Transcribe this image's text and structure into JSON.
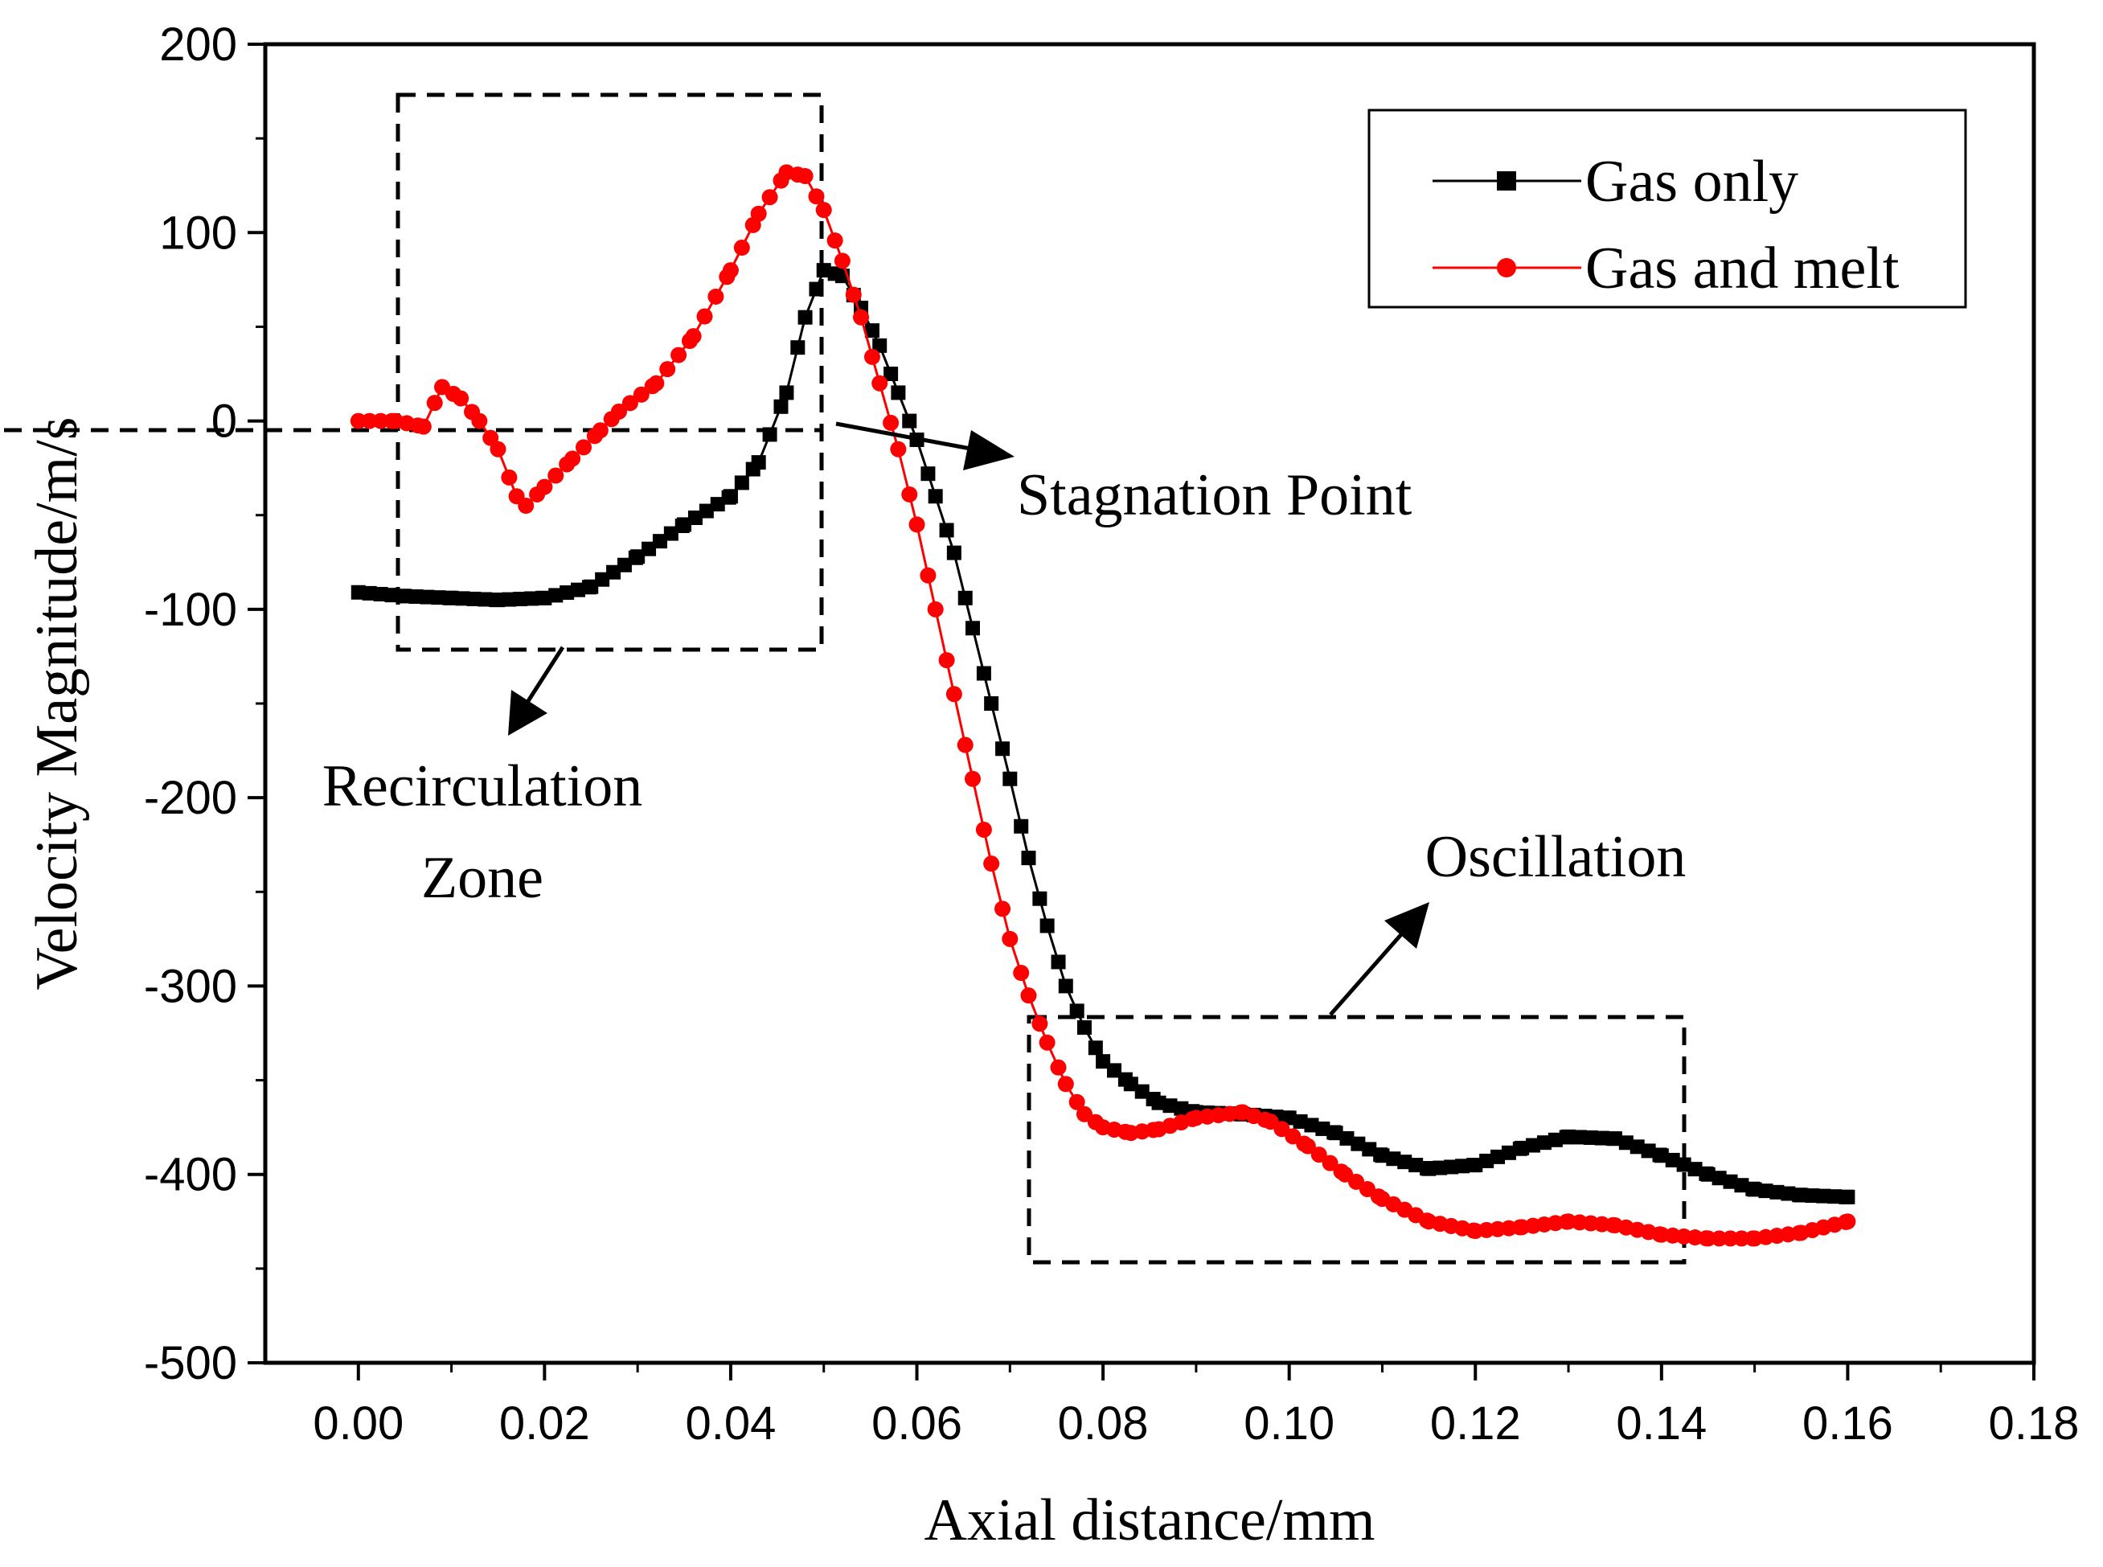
{
  "chart_data": {
    "type": "line",
    "title": "",
    "xlabel": "Axial distance/mm",
    "ylabel": "Velocity Magnitude/m/s",
    "xlim": [
      -0.01,
      0.18
    ],
    "ylim": [
      -500,
      200
    ],
    "x_ticks": [
      0.0,
      0.02,
      0.04,
      0.06,
      0.08,
      0.1,
      0.12,
      0.14,
      0.16,
      0.18
    ],
    "x_tick_labels": [
      "0.00",
      "0.02",
      "0.04",
      "0.06",
      "0.08",
      "0.10",
      "0.12",
      "0.14",
      "0.16",
      "0.18"
    ],
    "y_ticks": [
      200,
      100,
      0,
      -100,
      -200,
      -300,
      -400,
      -500
    ],
    "y_tick_labels": [
      "200",
      "100",
      "0",
      "-100",
      "-200",
      "-300",
      "-400",
      "-500"
    ],
    "legend_position": "top-right",
    "series": [
      {
        "name": "Gas only",
        "color": "#000000",
        "marker": "square",
        "points": [
          [
            0.0,
            -91
          ],
          [
            0.005,
            -93
          ],
          [
            0.01,
            -94
          ],
          [
            0.015,
            -95
          ],
          [
            0.02,
            -94
          ],
          [
            0.025,
            -88
          ],
          [
            0.03,
            -72
          ],
          [
            0.035,
            -55
          ],
          [
            0.04,
            -40
          ],
          [
            0.043,
            -22
          ],
          [
            0.046,
            15
          ],
          [
            0.048,
            55
          ],
          [
            0.05,
            80
          ],
          [
            0.052,
            77
          ],
          [
            0.054,
            60
          ],
          [
            0.056,
            40
          ],
          [
            0.058,
            15
          ],
          [
            0.06,
            -10
          ],
          [
            0.062,
            -40
          ],
          [
            0.064,
            -70
          ],
          [
            0.066,
            -110
          ],
          [
            0.068,
            -150
          ],
          [
            0.07,
            -190
          ],
          [
            0.072,
            -232
          ],
          [
            0.074,
            -268
          ],
          [
            0.076,
            -300
          ],
          [
            0.078,
            -322
          ],
          [
            0.08,
            -340
          ],
          [
            0.083,
            -352
          ],
          [
            0.086,
            -362
          ],
          [
            0.09,
            -367
          ],
          [
            0.095,
            -368
          ],
          [
            0.1,
            -370
          ],
          [
            0.105,
            -378
          ],
          [
            0.11,
            -390
          ],
          [
            0.115,
            -397
          ],
          [
            0.12,
            -395
          ],
          [
            0.125,
            -386
          ],
          [
            0.13,
            -380
          ],
          [
            0.135,
            -381
          ],
          [
            0.14,
            -390
          ],
          [
            0.145,
            -400
          ],
          [
            0.15,
            -408
          ],
          [
            0.155,
            -411
          ],
          [
            0.16,
            -412
          ]
        ]
      },
      {
        "name": "Gas and melt",
        "color": "#ff0000",
        "marker": "circle",
        "points": [
          [
            0.0,
            0
          ],
          [
            0.004,
            0
          ],
          [
            0.007,
            -3
          ],
          [
            0.009,
            18
          ],
          [
            0.011,
            12
          ],
          [
            0.013,
            0
          ],
          [
            0.015,
            -15
          ],
          [
            0.017,
            -40
          ],
          [
            0.018,
            -45
          ],
          [
            0.02,
            -35
          ],
          [
            0.023,
            -20
          ],
          [
            0.026,
            -5
          ],
          [
            0.028,
            5
          ],
          [
            0.032,
            20
          ],
          [
            0.036,
            45
          ],
          [
            0.04,
            80
          ],
          [
            0.043,
            110
          ],
          [
            0.046,
            132
          ],
          [
            0.048,
            130
          ],
          [
            0.05,
            112
          ],
          [
            0.052,
            85
          ],
          [
            0.054,
            55
          ],
          [
            0.056,
            20
          ],
          [
            0.058,
            -15
          ],
          [
            0.06,
            -55
          ],
          [
            0.062,
            -100
          ],
          [
            0.064,
            -145
          ],
          [
            0.066,
            -190
          ],
          [
            0.068,
            -235
          ],
          [
            0.07,
            -275
          ],
          [
            0.072,
            -305
          ],
          [
            0.074,
            -330
          ],
          [
            0.076,
            -352
          ],
          [
            0.078,
            -368
          ],
          [
            0.08,
            -375
          ],
          [
            0.083,
            -378
          ],
          [
            0.086,
            -376
          ],
          [
            0.09,
            -370
          ],
          [
            0.095,
            -367
          ],
          [
            0.098,
            -372
          ],
          [
            0.102,
            -385
          ],
          [
            0.106,
            -400
          ],
          [
            0.11,
            -413
          ],
          [
            0.115,
            -425
          ],
          [
            0.12,
            -430
          ],
          [
            0.125,
            -428
          ],
          [
            0.13,
            -425
          ],
          [
            0.135,
            -427
          ],
          [
            0.14,
            -432
          ],
          [
            0.145,
            -434
          ],
          [
            0.15,
            -434
          ],
          [
            0.155,
            -431
          ],
          [
            0.16,
            -425
          ]
        ]
      }
    ],
    "annotations": [
      {
        "id": "stagnation",
        "text": "Stagnation Point"
      },
      {
        "id": "recirc1",
        "text": "Recirculation"
      },
      {
        "id": "recirc2",
        "text": "Zone"
      },
      {
        "id": "osc",
        "text": "Oscillation"
      }
    ]
  }
}
